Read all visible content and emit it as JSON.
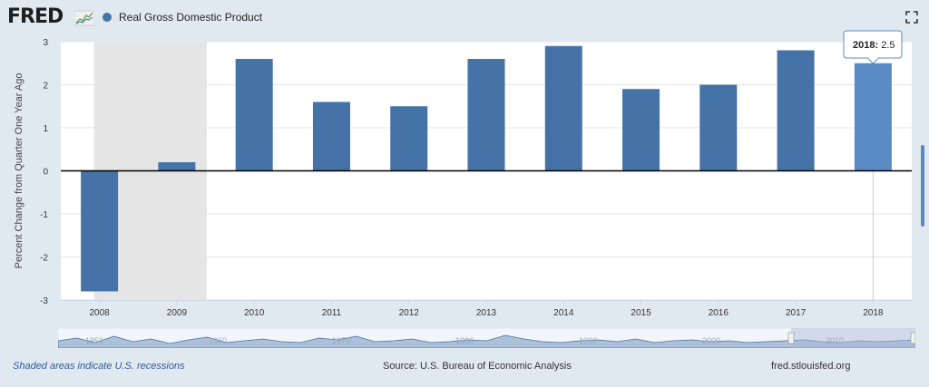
{
  "header": {
    "logo_text": "FRED",
    "legend_label": "Real Gross Domestic Product",
    "legend_color": "#4572a7"
  },
  "chart_data": {
    "type": "bar",
    "categories": [
      "2008",
      "2009",
      "2010",
      "2011",
      "2012",
      "2013",
      "2014",
      "2015",
      "2016",
      "2017",
      "2018"
    ],
    "values": [
      -2.8,
      0.2,
      2.6,
      1.6,
      1.5,
      2.6,
      2.9,
      1.9,
      2.0,
      2.8,
      2.5
    ],
    "ylabel": "Percent Change from Quarter One Year Ago",
    "ylim": [
      -3,
      3
    ],
    "yticks": [
      "-3",
      "-2",
      "-1",
      "0",
      "1",
      "2",
      "3"
    ],
    "bar_color": "#4572a7",
    "highlight_color": "#5b8bc4",
    "recession_color": "#e5e5e5",
    "recession_span": [
      "2008",
      "2009"
    ],
    "tooltip": {
      "label": "2018:",
      "value": "2.5"
    }
  },
  "navigator": {
    "labels": [
      "1950",
      "1960",
      "1970",
      "1980",
      "1990",
      "2000",
      "2010"
    ]
  },
  "footer": {
    "recession_note": "Shaded areas indicate U.S. recessions",
    "source": "Source: U.S. Bureau of Economic Analysis",
    "site": "fred.stlouisfed.org"
  }
}
